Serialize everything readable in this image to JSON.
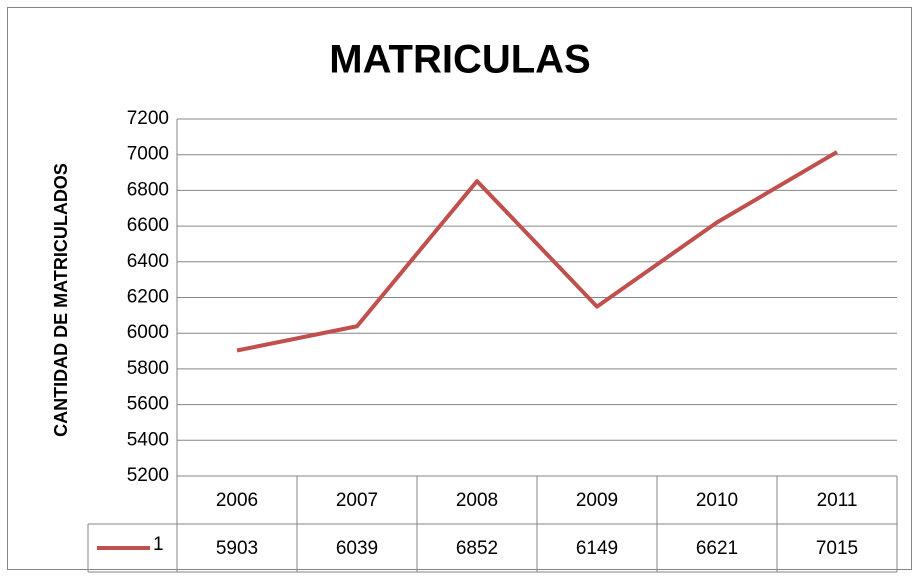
{
  "chart_data": {
    "type": "line",
    "title": "MATRICULAS",
    "y_label": "CANTIDAD DE MATRICULADOS",
    "categories": [
      "2006",
      "2007",
      "2008",
      "2009",
      "2010",
      "2011"
    ],
    "series": [
      {
        "name": "1",
        "color": "#c0504d",
        "values": [
          5903,
          6039,
          6852,
          6149,
          6621,
          7015
        ]
      }
    ],
    "ylim": [
      5200,
      7200
    ],
    "yticks": [
      5200,
      5400,
      5600,
      5800,
      6000,
      6200,
      6400,
      6600,
      6800,
      7000,
      7200
    ],
    "grid": true
  }
}
